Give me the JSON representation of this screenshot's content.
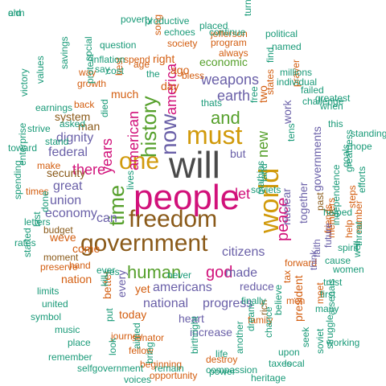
{
  "palette": {
    "grey": "#4a4a4a",
    "gold": "#d19a0b",
    "brown": "#8a5a19",
    "green": "#56a02c",
    "magenta": "#d1117a",
    "purple": "#6a60a8",
    "orange": "#d35d0f",
    "teal": "#199a78"
  },
  "words": [
    {
      "text": "people",
      "color": "magenta"
    },
    {
      "text": "will",
      "color": "grey"
    },
    {
      "text": "government",
      "color": "brown"
    },
    {
      "text": "freedom",
      "color": "brown"
    },
    {
      "text": "world",
      "color": "gold"
    },
    {
      "text": "one",
      "color": "gold"
    },
    {
      "text": "must",
      "color": "gold"
    },
    {
      "text": "now",
      "color": "purple"
    },
    {
      "text": "time",
      "color": "green"
    },
    {
      "text": "human",
      "color": "green"
    },
    {
      "text": "history",
      "color": "green"
    },
    {
      "text": "peace",
      "color": "magenta"
    },
    {
      "text": "god",
      "color": "magenta"
    },
    {
      "text": "america",
      "color": "magenta"
    },
    {
      "text": "new",
      "color": "green"
    },
    {
      "text": "and",
      "color": "green"
    },
    {
      "text": "years",
      "color": "magenta"
    },
    {
      "text": "american",
      "color": "magenta"
    },
    {
      "text": "earth",
      "color": "purple"
    },
    {
      "text": "weapons",
      "color": "purple"
    },
    {
      "text": "nuclear",
      "color": "purple"
    },
    {
      "text": "together",
      "color": "purple"
    },
    {
      "text": "citizens",
      "color": "purple"
    },
    {
      "text": "national",
      "color": "purple"
    },
    {
      "text": "americans",
      "color": "purple"
    },
    {
      "text": "progress",
      "color": "purple"
    },
    {
      "text": "there",
      "color": "magenta"
    },
    {
      "text": "let",
      "color": "magenta"
    },
    {
      "text": "made",
      "color": "purple"
    },
    {
      "text": "can",
      "color": "purple"
    },
    {
      "text": "great",
      "color": "purple"
    },
    {
      "text": "union",
      "color": "purple"
    },
    {
      "text": "economy",
      "color": "purple"
    },
    {
      "text": "federal",
      "color": "purple"
    },
    {
      "text": "dignity",
      "color": "purple"
    },
    {
      "text": "system",
      "color": "brown"
    },
    {
      "text": "security",
      "color": "brown"
    },
    {
      "text": "man",
      "color": "brown"
    },
    {
      "text": "economic",
      "color": "green"
    },
    {
      "text": "day",
      "color": "orange"
    },
    {
      "text": "ago",
      "color": "orange"
    },
    {
      "text": "right",
      "color": "orange"
    },
    {
      "text": "much",
      "color": "orange"
    },
    {
      "text": "but",
      "color": "purple"
    },
    {
      "text": "two",
      "color": "orange"
    },
    {
      "text": "work",
      "color": "purple"
    },
    {
      "text": "governments",
      "color": "purple"
    },
    {
      "text": "past",
      "color": "brown"
    },
    {
      "text": "reduce",
      "color": "purple"
    },
    {
      "text": "heart",
      "color": "purple"
    },
    {
      "text": "increase",
      "color": "purple"
    },
    {
      "text": "every",
      "color": "purple"
    },
    {
      "text": "yet",
      "color": "orange"
    },
    {
      "text": "today",
      "color": "orange"
    },
    {
      "text": "nation",
      "color": "orange"
    },
    {
      "text": "better",
      "color": "orange"
    },
    {
      "text": "weve",
      "color": "orange"
    },
    {
      "text": "come",
      "color": "orange"
    },
    {
      "text": "tax",
      "color": "orange"
    },
    {
      "text": "president",
      "color": "orange"
    },
    {
      "text": "forward",
      "color": "orange"
    },
    {
      "text": "program",
      "color": "orange"
    },
    {
      "text": "society",
      "color": "orange"
    },
    {
      "text": "always",
      "color": "orange"
    },
    {
      "text": "spend",
      "color": "orange"
    },
    {
      "text": "age",
      "color": "orange"
    },
    {
      "text": "best",
      "color": "orange"
    },
    {
      "text": "way",
      "color": "orange"
    },
    {
      "text": "growth",
      "color": "orange"
    },
    {
      "text": "back",
      "color": "orange"
    },
    {
      "text": "make",
      "color": "orange"
    },
    {
      "text": "times",
      "color": "orange"
    },
    {
      "text": "hand",
      "color": "orange"
    },
    {
      "text": "preserve",
      "color": "orange"
    },
    {
      "text": "moment",
      "color": "brown"
    },
    {
      "text": "budget",
      "color": "brown"
    },
    {
      "text": "journey",
      "color": "orange"
    },
    {
      "text": "fellow",
      "color": "orange"
    },
    {
      "text": "senator",
      "color": "orange"
    },
    {
      "text": "beginning",
      "color": "orange"
    },
    {
      "text": "opportunity",
      "color": "orange"
    },
    {
      "text": "destroy",
      "color": "orange"
    },
    {
      "text": "family",
      "color": "orange"
    },
    {
      "text": "men",
      "color": "orange"
    },
    {
      "text": "help",
      "color": "orange"
    },
    {
      "text": "number",
      "color": "orange"
    },
    {
      "text": "steps",
      "color": "orange"
    },
    {
      "text": "friends",
      "color": "orange"
    },
    {
      "text": "members",
      "color": "orange"
    },
    {
      "text": "meet",
      "color": "orange"
    },
    {
      "text": "future",
      "color": "purple"
    },
    {
      "text": "faith",
      "color": "purple"
    },
    {
      "text": "think",
      "color": "purple"
    },
    {
      "text": "rich",
      "color": "brown"
    },
    {
      "text": "song",
      "color": "orange"
    },
    {
      "text": "bless",
      "color": "orange"
    },
    {
      "text": "states",
      "color": "orange"
    },
    {
      "text": "prayer",
      "color": "orange"
    },
    {
      "text": "jefferson",
      "color": "orange"
    },
    {
      "text": "productive",
      "color": "teal"
    },
    {
      "text": "poverty",
      "color": "teal"
    },
    {
      "text": "echoes",
      "color": "teal"
    },
    {
      "text": "placed",
      "color": "teal"
    },
    {
      "text": "continue",
      "color": "teal"
    },
    {
      "text": "political",
      "color": "teal"
    },
    {
      "text": "named",
      "color": "teal"
    },
    {
      "text": "turn",
      "color": "teal"
    },
    {
      "text": "question",
      "color": "teal"
    },
    {
      "text": "inflation",
      "color": "teal"
    },
    {
      "text": "say",
      "color": "teal"
    },
    {
      "text": "cost",
      "color": "teal"
    },
    {
      "text": "the",
      "color": "teal"
    },
    {
      "text": "millions",
      "color": "teal"
    },
    {
      "text": "individual",
      "color": "teal"
    },
    {
      "text": "failed",
      "color": "teal"
    },
    {
      "text": "challenge",
      "color": "teal"
    },
    {
      "text": "find",
      "color": "teal"
    },
    {
      "text": "savings",
      "color": "teal"
    },
    {
      "text": "values",
      "color": "teal"
    },
    {
      "text": "victory",
      "color": "teal"
    },
    {
      "text": "earnings",
      "color": "teal"
    },
    {
      "text": "asked",
      "color": "teal"
    },
    {
      "text": "social",
      "color": "teal"
    },
    {
      "text": "protect",
      "color": "teal"
    },
    {
      "text": "strive",
      "color": "teal"
    },
    {
      "text": "toward",
      "color": "teal"
    },
    {
      "text": "enterprise",
      "color": "teal"
    },
    {
      "text": "spending",
      "color": "teal"
    },
    {
      "text": "letters",
      "color": "teal"
    },
    {
      "text": "rates",
      "color": "teal"
    },
    {
      "text": "started",
      "color": "teal"
    },
    {
      "text": "last",
      "color": "teal"
    },
    {
      "text": "done",
      "color": "teal"
    },
    {
      "text": "stand",
      "color": "teal"
    },
    {
      "text": "limits",
      "color": "teal"
    },
    {
      "text": "united",
      "color": "teal"
    },
    {
      "text": "symbol",
      "color": "teal"
    },
    {
      "text": "music",
      "color": "teal"
    },
    {
      "text": "place",
      "color": "teal"
    },
    {
      "text": "remember",
      "color": "teal"
    },
    {
      "text": "selfgovernment",
      "color": "teal"
    },
    {
      "text": "voices",
      "color": "teal"
    },
    {
      "text": "remain",
      "color": "teal"
    },
    {
      "text": "compassion",
      "color": "teal"
    },
    {
      "text": "heritage",
      "color": "teal"
    },
    {
      "text": "taxes",
      "color": "teal"
    },
    {
      "text": "upon",
      "color": "teal"
    },
    {
      "text": "local",
      "color": "teal"
    },
    {
      "text": "seek",
      "color": "teal"
    },
    {
      "text": "soviet",
      "color": "teal"
    },
    {
      "text": "struggle",
      "color": "teal"
    },
    {
      "text": "working",
      "color": "teal"
    },
    {
      "text": "arsenals",
      "color": "teal"
    },
    {
      "text": "many",
      "color": "teal"
    },
    {
      "text": "first",
      "color": "teal"
    },
    {
      "text": "trust",
      "color": "teal"
    },
    {
      "text": "cause",
      "color": "teal"
    },
    {
      "text": "women",
      "color": "teal"
    },
    {
      "text": "spirit",
      "color": "teal"
    },
    {
      "text": "well",
      "color": "teal"
    },
    {
      "text": "threat",
      "color": "teal"
    },
    {
      "text": "independence",
      "color": "teal"
    },
    {
      "text": "goals",
      "color": "teal"
    },
    {
      "text": "greatness",
      "color": "teal"
    },
    {
      "text": "efforts",
      "color": "teal"
    },
    {
      "text": "hope",
      "color": "teal"
    },
    {
      "text": "standing",
      "color": "teal"
    },
    {
      "text": "this",
      "color": "teal"
    },
    {
      "text": "when",
      "color": "teal"
    },
    {
      "text": "greatest",
      "color": "teal"
    },
    {
      "text": "helped",
      "color": "teal"
    },
    {
      "text": "mathias",
      "color": "teal"
    },
    {
      "text": "land",
      "color": "teal"
    },
    {
      "text": "tens",
      "color": "teal"
    },
    {
      "text": "free",
      "color": "teal"
    },
    {
      "text": "thats",
      "color": "teal"
    },
    {
      "text": "died",
      "color": "teal"
    },
    {
      "text": "put",
      "color": "teal"
    },
    {
      "text": "lives",
      "color": "teal"
    },
    {
      "text": "ever",
      "color": "teal"
    },
    {
      "text": "kill",
      "color": "teal"
    },
    {
      "text": "yes",
      "color": "teal"
    },
    {
      "text": "look",
      "color": "teal"
    },
    {
      "text": "aimed",
      "color": "teal"
    },
    {
      "text": "bring",
      "color": "teal"
    },
    {
      "text": "birthright",
      "color": "teal"
    },
    {
      "text": "power",
      "color": "teal"
    },
    {
      "text": "life",
      "color": "teal"
    },
    {
      "text": "another",
      "color": "teal"
    },
    {
      "text": "dream",
      "color": "teal"
    },
    {
      "text": "chance",
      "color": "teal"
    },
    {
      "text": "believe",
      "color": "teal"
    },
    {
      "text": "finally",
      "color": "teal"
    },
    {
      "text": "never",
      "color": "teal"
    },
    {
      "text": "soviets",
      "color": "teal"
    },
    {
      "text": "old",
      "color": "teal"
    },
    {
      "text": "arm",
      "color": "teal"
    }
  ]
}
